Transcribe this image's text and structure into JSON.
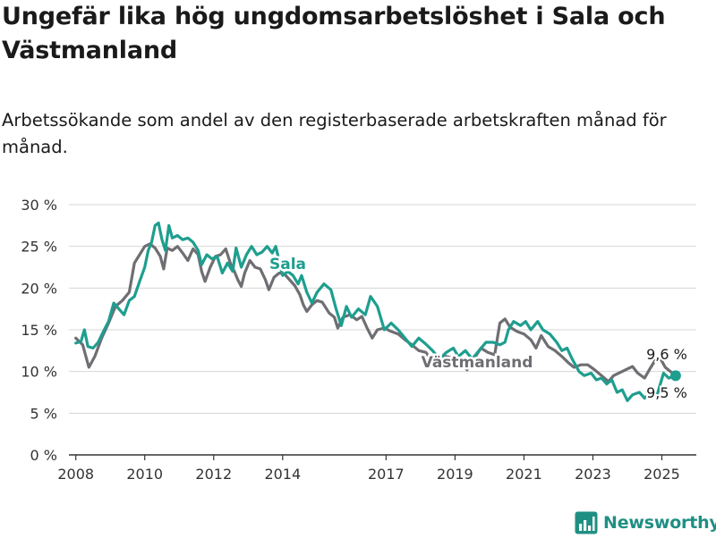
{
  "title": "Ungefär lika hög ungdomsarbetslöshet i Sala och Västmanland",
  "subtitle": "Arbetssökande som andel av den registerbaserade arbetskraften månad för månad.",
  "brand": {
    "name": "Newsworthy",
    "color": "#1f8f83"
  },
  "chart_data": {
    "type": "line",
    "y_unit": "%",
    "ylim": [
      0,
      30
    ],
    "xlim": [
      2007.8,
      2026.0
    ],
    "y_ticks": [
      "0 %",
      "5 %",
      "10 %",
      "15 %",
      "20 %",
      "25 %",
      "30 %"
    ],
    "y_tick_values": [
      0,
      5,
      10,
      15,
      20,
      25,
      30
    ],
    "x_ticks": [
      "2008",
      "2010",
      "2012",
      "2014",
      "2017",
      "2019",
      "2021",
      "2023",
      "2025"
    ],
    "x_tick_values": [
      2008,
      2010,
      2012,
      2014,
      2017,
      2019,
      2021,
      2023,
      2025
    ],
    "grid": true,
    "series": [
      {
        "name": "Västmanland",
        "color": "#6e6e73",
        "end_label": "9,6 %",
        "points": [
          [
            2008.0,
            14.0
          ],
          [
            2008.2,
            13.2
          ],
          [
            2008.38,
            10.5
          ],
          [
            2008.55,
            11.8
          ],
          [
            2008.75,
            14.0
          ],
          [
            2008.95,
            15.8
          ],
          [
            2009.15,
            17.8
          ],
          [
            2009.35,
            18.5
          ],
          [
            2009.55,
            19.5
          ],
          [
            2009.7,
            23.0
          ],
          [
            2009.85,
            24.0
          ],
          [
            2010.0,
            25.0
          ],
          [
            2010.15,
            25.3
          ],
          [
            2010.3,
            24.8
          ],
          [
            2010.45,
            23.8
          ],
          [
            2010.55,
            22.3
          ],
          [
            2010.65,
            24.8
          ],
          [
            2010.8,
            24.5
          ],
          [
            2010.95,
            25.0
          ],
          [
            2011.1,
            24.2
          ],
          [
            2011.25,
            23.3
          ],
          [
            2011.4,
            24.7
          ],
          [
            2011.55,
            24.0
          ],
          [
            2011.65,
            22.0
          ],
          [
            2011.75,
            20.8
          ],
          [
            2011.9,
            22.5
          ],
          [
            2012.05,
            23.8
          ],
          [
            2012.2,
            24.0
          ],
          [
            2012.35,
            24.7
          ],
          [
            2012.5,
            22.8
          ],
          [
            2012.6,
            22.0
          ],
          [
            2012.7,
            21.0
          ],
          [
            2012.8,
            20.2
          ],
          [
            2012.9,
            21.8
          ],
          [
            2013.05,
            23.3
          ],
          [
            2013.2,
            22.5
          ],
          [
            2013.35,
            22.3
          ],
          [
            2013.5,
            21.0
          ],
          [
            2013.6,
            19.8
          ],
          [
            2013.75,
            21.3
          ],
          [
            2013.9,
            21.8
          ],
          [
            2014.05,
            21.7
          ],
          [
            2014.2,
            21.0
          ],
          [
            2014.35,
            20.3
          ],
          [
            2014.5,
            19.2
          ],
          [
            2014.6,
            18.0
          ],
          [
            2014.7,
            17.2
          ],
          [
            2014.85,
            18.0
          ],
          [
            2015.0,
            18.5
          ],
          [
            2015.15,
            18.3
          ],
          [
            2015.35,
            17.0
          ],
          [
            2015.5,
            16.5
          ],
          [
            2015.6,
            15.2
          ],
          [
            2015.75,
            16.5
          ],
          [
            2015.95,
            16.8
          ],
          [
            2016.15,
            16.2
          ],
          [
            2016.3,
            16.6
          ],
          [
            2016.45,
            15.2
          ],
          [
            2016.6,
            14.0
          ],
          [
            2016.75,
            15.0
          ],
          [
            2016.95,
            15.2
          ],
          [
            2017.15,
            14.8
          ],
          [
            2017.35,
            14.5
          ],
          [
            2017.55,
            13.8
          ],
          [
            2017.75,
            13.2
          ],
          [
            2017.95,
            12.5
          ],
          [
            2018.15,
            12.3
          ],
          [
            2018.35,
            11.3
          ],
          [
            2018.55,
            11.5
          ],
          [
            2018.75,
            11.8
          ],
          [
            2018.95,
            11.6
          ],
          [
            2019.15,
            11.2
          ],
          [
            2019.35,
            10.2
          ],
          [
            2019.55,
            11.5
          ],
          [
            2019.75,
            12.8
          ],
          [
            2019.95,
            12.3
          ],
          [
            2020.15,
            12.0
          ],
          [
            2020.3,
            15.8
          ],
          [
            2020.45,
            16.3
          ],
          [
            2020.6,
            15.3
          ],
          [
            2020.8,
            14.8
          ],
          [
            2021.0,
            14.5
          ],
          [
            2021.2,
            13.8
          ],
          [
            2021.35,
            12.8
          ],
          [
            2021.5,
            14.3
          ],
          [
            2021.7,
            13.0
          ],
          [
            2021.9,
            12.5
          ],
          [
            2022.1,
            11.8
          ],
          [
            2022.3,
            11.0
          ],
          [
            2022.45,
            10.5
          ],
          [
            2022.65,
            10.8
          ],
          [
            2022.85,
            10.8
          ],
          [
            2023.05,
            10.2
          ],
          [
            2023.25,
            9.5
          ],
          [
            2023.45,
            8.8
          ],
          [
            2023.6,
            9.5
          ],
          [
            2023.8,
            9.9
          ],
          [
            2023.95,
            10.2
          ],
          [
            2024.15,
            10.6
          ],
          [
            2024.3,
            9.8
          ],
          [
            2024.5,
            9.2
          ],
          [
            2024.65,
            10.3
          ],
          [
            2024.8,
            11.3
          ],
          [
            2024.95,
            11.6
          ],
          [
            2025.1,
            10.5
          ],
          [
            2025.25,
            10.0
          ],
          [
            2025.4,
            9.6
          ]
        ]
      },
      {
        "name": "Sala",
        "color": "#1e9e8f",
        "end_label": "9,5 %",
        "points": [
          [
            2008.0,
            13.4
          ],
          [
            2008.15,
            13.6
          ],
          [
            2008.25,
            15.0
          ],
          [
            2008.35,
            13.0
          ],
          [
            2008.5,
            12.8
          ],
          [
            2008.65,
            13.5
          ],
          [
            2008.8,
            14.8
          ],
          [
            2008.95,
            16.0
          ],
          [
            2009.1,
            18.2
          ],
          [
            2009.25,
            17.5
          ],
          [
            2009.4,
            16.8
          ],
          [
            2009.55,
            18.5
          ],
          [
            2009.7,
            19.0
          ],
          [
            2009.85,
            20.8
          ],
          [
            2010.0,
            22.5
          ],
          [
            2010.1,
            24.5
          ],
          [
            2010.2,
            25.5
          ],
          [
            2010.3,
            27.5
          ],
          [
            2010.4,
            27.8
          ],
          [
            2010.5,
            25.8
          ],
          [
            2010.6,
            24.5
          ],
          [
            2010.7,
            27.5
          ],
          [
            2010.8,
            26.0
          ],
          [
            2010.95,
            26.3
          ],
          [
            2011.1,
            25.8
          ],
          [
            2011.25,
            26.0
          ],
          [
            2011.4,
            25.5
          ],
          [
            2011.55,
            24.5
          ],
          [
            2011.65,
            22.8
          ],
          [
            2011.8,
            24.0
          ],
          [
            2011.95,
            23.5
          ],
          [
            2012.1,
            23.8
          ],
          [
            2012.25,
            21.8
          ],
          [
            2012.4,
            23.0
          ],
          [
            2012.55,
            22.0
          ],
          [
            2012.65,
            24.8
          ],
          [
            2012.8,
            22.5
          ],
          [
            2012.95,
            24.0
          ],
          [
            2013.1,
            25.0
          ],
          [
            2013.25,
            24.0
          ],
          [
            2013.4,
            24.3
          ],
          [
            2013.55,
            25.0
          ],
          [
            2013.7,
            24.2
          ],
          [
            2013.8,
            25.0
          ],
          [
            2014.0,
            21.5
          ],
          [
            2014.15,
            22.0
          ],
          [
            2014.3,
            21.5
          ],
          [
            2014.45,
            20.5
          ],
          [
            2014.55,
            21.5
          ],
          [
            2014.7,
            19.5
          ],
          [
            2014.85,
            18.2
          ],
          [
            2015.0,
            19.5
          ],
          [
            2015.2,
            20.5
          ],
          [
            2015.4,
            19.8
          ],
          [
            2015.55,
            17.5
          ],
          [
            2015.7,
            15.5
          ],
          [
            2015.85,
            17.8
          ],
          [
            2016.0,
            16.5
          ],
          [
            2016.2,
            17.5
          ],
          [
            2016.4,
            16.8
          ],
          [
            2016.55,
            19.0
          ],
          [
            2016.75,
            17.8
          ],
          [
            2016.95,
            15.0
          ],
          [
            2017.15,
            15.8
          ],
          [
            2017.35,
            15.0
          ],
          [
            2017.55,
            14.0
          ],
          [
            2017.75,
            13.0
          ],
          [
            2017.95,
            14.0
          ],
          [
            2018.15,
            13.3
          ],
          [
            2018.35,
            12.5
          ],
          [
            2018.55,
            11.5
          ],
          [
            2018.75,
            12.3
          ],
          [
            2018.95,
            12.8
          ],
          [
            2019.1,
            11.8
          ],
          [
            2019.3,
            12.5
          ],
          [
            2019.5,
            11.5
          ],
          [
            2019.7,
            12.5
          ],
          [
            2019.9,
            13.5
          ],
          [
            2020.1,
            13.5
          ],
          [
            2020.3,
            13.2
          ],
          [
            2020.45,
            13.5
          ],
          [
            2020.55,
            15.0
          ],
          [
            2020.7,
            16.0
          ],
          [
            2020.9,
            15.5
          ],
          [
            2021.05,
            16.0
          ],
          [
            2021.2,
            15.0
          ],
          [
            2021.4,
            16.0
          ],
          [
            2021.55,
            15.0
          ],
          [
            2021.75,
            14.5
          ],
          [
            2021.95,
            13.5
          ],
          [
            2022.1,
            12.5
          ],
          [
            2022.25,
            12.8
          ],
          [
            2022.4,
            11.5
          ],
          [
            2022.6,
            10.0
          ],
          [
            2022.75,
            9.5
          ],
          [
            2022.95,
            9.8
          ],
          [
            2023.1,
            9.0
          ],
          [
            2023.25,
            9.2
          ],
          [
            2023.4,
            8.5
          ],
          [
            2023.55,
            9.0
          ],
          [
            2023.7,
            7.5
          ],
          [
            2023.85,
            7.8
          ],
          [
            2024.0,
            6.5
          ],
          [
            2024.15,
            7.2
          ],
          [
            2024.35,
            7.5
          ],
          [
            2024.5,
            6.8
          ],
          [
            2024.7,
            7.5
          ],
          [
            2024.85,
            7.0
          ],
          [
            2025.05,
            9.8
          ],
          [
            2025.2,
            9.2
          ],
          [
            2025.4,
            9.5
          ]
        ]
      }
    ],
    "annotations": [
      {
        "text": "Sala",
        "series": "Sala"
      },
      {
        "text": "Västmanland",
        "series": "Västmanland"
      }
    ]
  }
}
